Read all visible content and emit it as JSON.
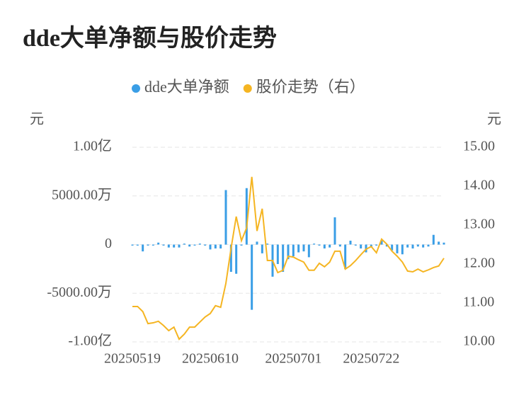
{
  "chart_data": {
    "type": "bar-line",
    "title": "dde大单净额与股价走势",
    "y_label": "元",
    "y2_label": "元",
    "categories": [
      "20250519",
      null,
      null,
      null,
      null,
      null,
      null,
      null,
      null,
      null,
      null,
      null,
      null,
      null,
      null,
      "20250610",
      null,
      null,
      null,
      null,
      null,
      null,
      null,
      null,
      null,
      null,
      null,
      null,
      null,
      null,
      null,
      "20250701",
      null,
      null,
      null,
      null,
      null,
      null,
      null,
      null,
      null,
      null,
      null,
      null,
      null,
      null,
      "20250722",
      null,
      null,
      null,
      null,
      null,
      null,
      null,
      null,
      null,
      null,
      null,
      null,
      null,
      null
    ],
    "ylim": [
      -100000000,
      100000000
    ],
    "yticks": [
      {
        "value": 100000000,
        "label": "1.00亿"
      },
      {
        "value": 50000000,
        "label": "5000.00万"
      },
      0,
      {
        "value": -50000000,
        "label": "-5000.00万"
      },
      {
        "value": -100000000,
        "label": "-1.00亿"
      }
    ],
    "y2lim": [
      10,
      15
    ],
    "y2ticks": [
      {
        "value": 15,
        "label": "15.00"
      },
      {
        "value": 14,
        "label": "14.00"
      },
      {
        "value": 13,
        "label": "13.00"
      },
      {
        "value": 12,
        "label": "12.00"
      },
      {
        "value": 11,
        "label": "11.00"
      },
      {
        "value": 10,
        "label": "10.00"
      }
    ],
    "grid": true,
    "series": [
      {
        "name": "dde大单净额",
        "color": "#3a9ee6",
        "type": "bar",
        "values": [
          -1000000,
          -1000000,
          -7000000,
          -1000000,
          -1000000,
          2000000,
          -1000000,
          -3000000,
          -3000000,
          -3000000,
          1000000,
          -2000000,
          -1000000,
          1000000,
          -1000000,
          -5000000,
          -4000000,
          -4000000,
          56000000,
          -28000000,
          -30000000,
          -1000000,
          58000000,
          -67000000,
          3000000,
          -9000000,
          1000000,
          -33000000,
          -20000000,
          -28000000,
          -15000000,
          -12000000,
          -8000000,
          -7000000,
          -13000000,
          1000000,
          -1000000,
          -4000000,
          -3000000,
          28000000,
          -2000000,
          -25000000,
          4000000,
          -1000000,
          -4000000,
          -8000000,
          -3000000,
          -1000000,
          4000000,
          -2000000,
          -6000000,
          -9000000,
          -10000000,
          -3000000,
          -4000000,
          -2000000,
          -3000000,
          -2000000,
          10000000,
          3000000,
          2000000
        ]
      },
      {
        "name": "股价走势（右）",
        "color": "#f5b522",
        "type": "line",
        "axis": "y2",
        "values": [
          10.91,
          10.91,
          10.78,
          10.47,
          10.49,
          10.53,
          10.42,
          10.29,
          10.38,
          10.07,
          10.2,
          10.38,
          10.38,
          10.51,
          10.64,
          10.73,
          10.93,
          10.89,
          11.5,
          12.4,
          13.22,
          12.6,
          12.93,
          14.24,
          12.85,
          13.42,
          12.09,
          12.09,
          11.78,
          11.84,
          12.2,
          12.18,
          12.11,
          12.05,
          11.84,
          11.84,
          12.02,
          11.93,
          12.05,
          12.33,
          12.33,
          11.87,
          11.96,
          12.09,
          12.24,
          12.38,
          12.45,
          12.29,
          12.64,
          12.51,
          12.33,
          12.2,
          12.05,
          11.82,
          11.8,
          11.87,
          11.8,
          11.85,
          11.91,
          11.95,
          12.15
        ]
      }
    ]
  }
}
